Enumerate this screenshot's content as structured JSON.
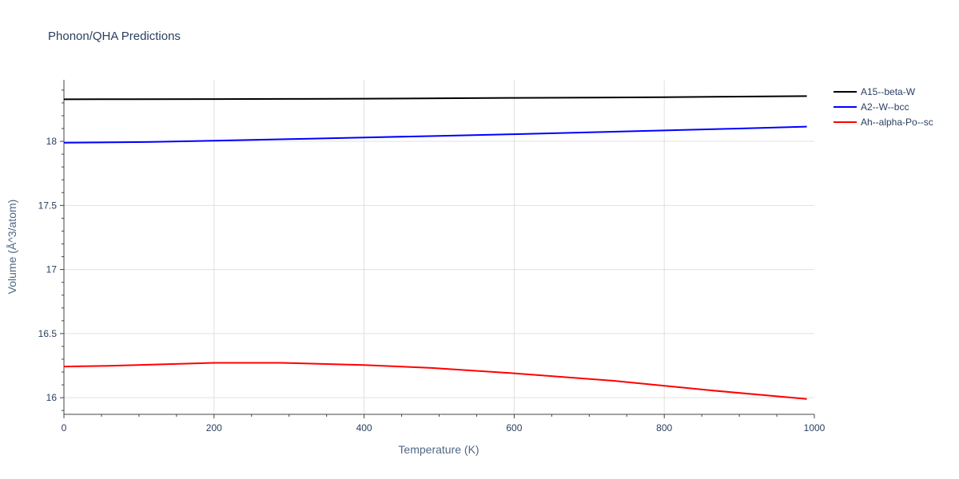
{
  "chart_data": {
    "type": "line",
    "title": "Phonon/QHA Predictions",
    "xlabel": "Temperature (K)",
    "ylabel": "Volume (Å^3/atom)",
    "xlim": [
      0,
      1000
    ],
    "ylim": [
      15.87,
      18.48
    ],
    "x_ticks": [
      0,
      200,
      400,
      600,
      800,
      1000
    ],
    "x_tick_labels": [
      "0",
      "200",
      "400",
      "600",
      "800",
      "1000"
    ],
    "y_ticks": [
      16,
      16.5,
      17,
      17.5,
      18
    ],
    "y_tick_labels": [
      "16",
      "16.5",
      "17",
      "17.5",
      "18"
    ],
    "grid": true,
    "legend_position": "top-right",
    "series": [
      {
        "name": "A15--beta-W",
        "color": "#000000",
        "x": [
          0,
          100,
          200,
          300,
          400,
          500,
          600,
          700,
          800,
          900,
          990
        ],
        "y": [
          18.328,
          18.329,
          18.33,
          18.331,
          18.333,
          18.336,
          18.339,
          18.342,
          18.345,
          18.349,
          18.353
        ]
      },
      {
        "name": "A2--W--bcc",
        "color": "#0000ff",
        "x": [
          0,
          110,
          200,
          300,
          400,
          500,
          600,
          700,
          800,
          900,
          990
        ],
        "y": [
          17.99,
          17.995,
          18.005,
          18.017,
          18.03,
          18.043,
          18.056,
          18.07,
          18.085,
          18.1,
          18.115
        ]
      },
      {
        "name": "Ah--alpha-Po--sc",
        "color": "#ff0000",
        "x": [
          0,
          60,
          130,
          200,
          290,
          400,
          490,
          600,
          730,
          860,
          990
        ],
        "y": [
          16.243,
          16.248,
          16.26,
          16.272,
          16.272,
          16.255,
          16.232,
          16.19,
          16.133,
          16.058,
          15.99
        ]
      }
    ]
  }
}
